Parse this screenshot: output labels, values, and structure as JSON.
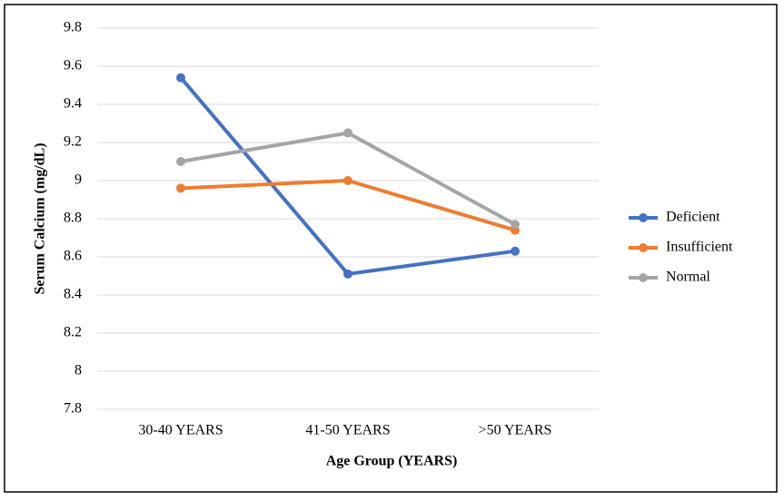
{
  "chart_data": {
    "type": "line",
    "x_label": "Age Group (YEARS)",
    "y_label": "Serum Calcium (mg/dL)",
    "categories": [
      "30-40 YEARS",
      "41-50 YEARS",
      ">50 YEARS"
    ],
    "series": [
      {
        "name": "Deficient",
        "color": "#4472c4",
        "values": [
          9.54,
          8.51,
          8.63
        ]
      },
      {
        "name": "Insufficient",
        "color": "#ed7d31",
        "values": [
          8.96,
          9.0,
          8.74
        ]
      },
      {
        "name": "Normal",
        "color": "#a5a5a5",
        "values": [
          9.1,
          9.25,
          8.77
        ]
      }
    ],
    "ylim": [
      7.8,
      9.8
    ],
    "yticks": [
      7.8,
      8,
      8.2,
      8.4,
      8.6,
      8.8,
      9,
      9.2,
      9.4,
      9.6,
      9.8
    ],
    "grid": true,
    "legend": "right"
  }
}
